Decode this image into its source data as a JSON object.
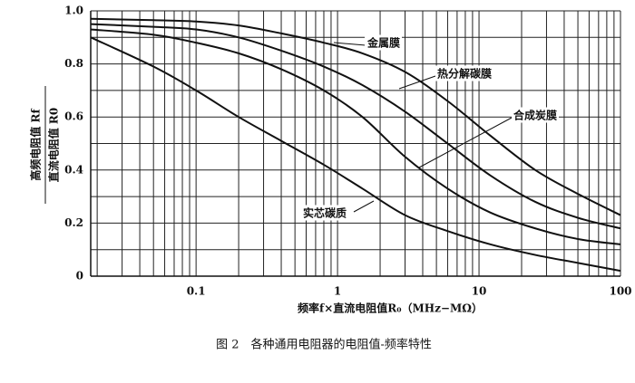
{
  "chart_data": {
    "type": "line",
    "ylabel_numerator": "高频电阻值 Rf",
    "ylabel_denominator": "直流电阻值 R0",
    "xlabel": "频率f×直流电阻值R₀（MHz−MΩ）",
    "caption": "图 2　各种通用电阻器的电阻值-频率特性",
    "xscale": "log",
    "x": [
      0.018,
      0.05,
      0.1,
      0.2,
      0.4,
      0.8,
      1.5,
      3,
      6,
      12,
      25,
      50,
      100
    ],
    "series": [
      {
        "name": "金属膜",
        "color": "#111111",
        "values": [
          0.97,
          0.965,
          0.96,
          0.945,
          0.915,
          0.88,
          0.84,
          0.77,
          0.66,
          0.53,
          0.4,
          0.31,
          0.23
        ]
      },
      {
        "name": "热分解碳膜",
        "color": "#111111",
        "values": [
          0.95,
          0.94,
          0.93,
          0.9,
          0.85,
          0.79,
          0.72,
          0.62,
          0.5,
          0.38,
          0.28,
          0.22,
          0.18
        ]
      },
      {
        "name": "合成炭膜",
        "color": "#111111",
        "values": [
          0.93,
          0.91,
          0.88,
          0.84,
          0.78,
          0.7,
          0.6,
          0.45,
          0.33,
          0.24,
          0.18,
          0.14,
          0.12
        ]
      },
      {
        "name": "实芯碳质",
        "color": "#111111",
        "values": [
          0.9,
          0.79,
          0.7,
          0.6,
          0.51,
          0.42,
          0.33,
          0.23,
          0.17,
          0.12,
          0.08,
          0.05,
          0.02
        ]
      }
    ],
    "xlim": [
      0.018,
      100
    ],
    "ylim": [
      0,
      1
    ],
    "xticks": [
      0.1,
      1,
      10,
      100
    ],
    "yticks": [
      0,
      0.2,
      0.4,
      0.6,
      0.8,
      {
        "value": 1,
        "label": "1.0"
      }
    ],
    "grid": true,
    "xminor": [
      0.02,
      0.03,
      0.04,
      0.05,
      0.06,
      0.07,
      0.08,
      0.09,
      0.2,
      0.3,
      0.4,
      0.5,
      0.6,
      0.7,
      0.8,
      0.9,
      2,
      3,
      4,
      5,
      6,
      7,
      8,
      9,
      20,
      30,
      40,
      50,
      60,
      70,
      80,
      90
    ],
    "yminor": [
      0.1,
      0.3,
      0.5,
      0.7,
      0.9
    ]
  }
}
